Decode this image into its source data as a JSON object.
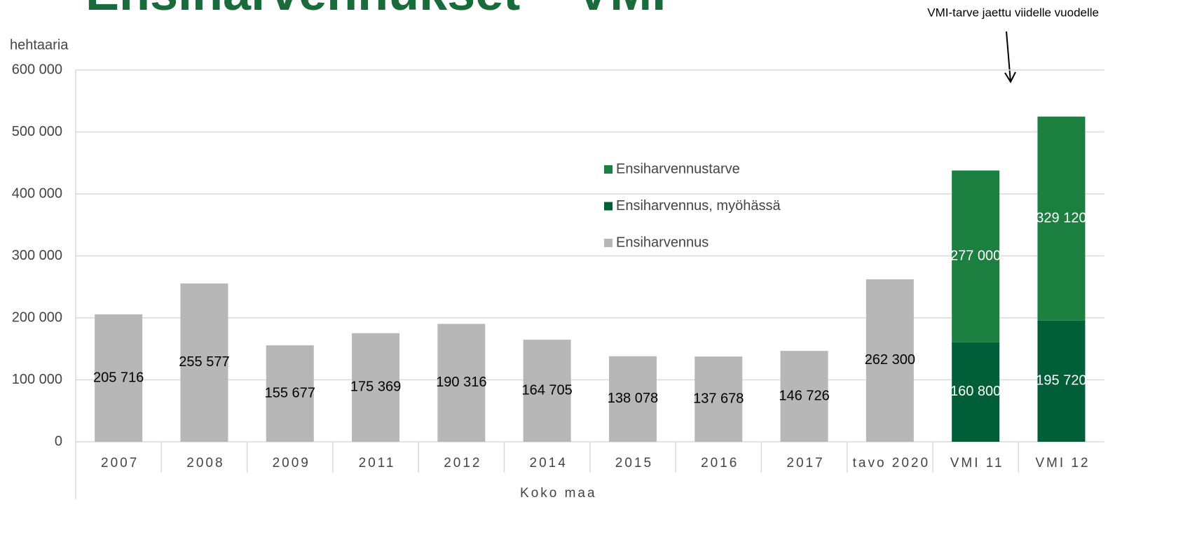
{
  "chart_data": {
    "type": "bar",
    "stacked": true,
    "title": "Ensiharvennukset – VMI",
    "y_label": "hehtaaria",
    "x_group_label": "Koko maa",
    "annotation": "VMI-tarve jaettu viidelle vuodelle",
    "categories": [
      "2007",
      "2008",
      "2009",
      "2011",
      "2012",
      "2014",
      "2015",
      "2016",
      "2017",
      "tavo 2020",
      "VMI 11",
      "VMI 12"
    ],
    "series": [
      {
        "name": "Ensiharvennus",
        "color": "#b7b7b7",
        "label_color": "#000000",
        "values": [
          205716,
          255577,
          155677,
          175369,
          190316,
          164705,
          138078,
          137678,
          146726,
          262300,
          null,
          null
        ],
        "value_labels": [
          "205 716",
          "255 577",
          "155 677",
          "175 369",
          "190 316",
          "164 705",
          "138 078",
          "137 678",
          "146 726",
          "262 300",
          null,
          null
        ]
      },
      {
        "name": "Ensiharvennus, myöhässä",
        "color": "#005f38",
        "label_color": "#ffffff",
        "values": [
          null,
          null,
          null,
          null,
          null,
          null,
          null,
          null,
          null,
          null,
          160800,
          195720
        ],
        "value_labels": [
          null,
          null,
          null,
          null,
          null,
          null,
          null,
          null,
          null,
          null,
          "160 800",
          "195 720"
        ]
      },
      {
        "name": "Ensiharvennustarve",
        "color": "#1a7f3f",
        "label_color": "#ffffff",
        "values": [
          null,
          null,
          null,
          null,
          null,
          null,
          null,
          null,
          null,
          null,
          277000,
          329120
        ],
        "value_labels": [
          null,
          null,
          null,
          null,
          null,
          null,
          null,
          null,
          null,
          null,
          "277 000",
          "329 120"
        ]
      }
    ],
    "ylim": [
      0,
      600000
    ],
    "yticks": [
      0,
      {
        "value": 100000,
        "label": "100 000"
      },
      {
        "value": 200000,
        "label": "200 000"
      },
      {
        "value": 300000,
        "label": "300 000"
      },
      {
        "value": 400000,
        "label": "400 000"
      },
      {
        "value": 500000,
        "label": "500 000"
      },
      {
        "value": 600000,
        "label": "600 000"
      }
    ],
    "grid": true
  }
}
